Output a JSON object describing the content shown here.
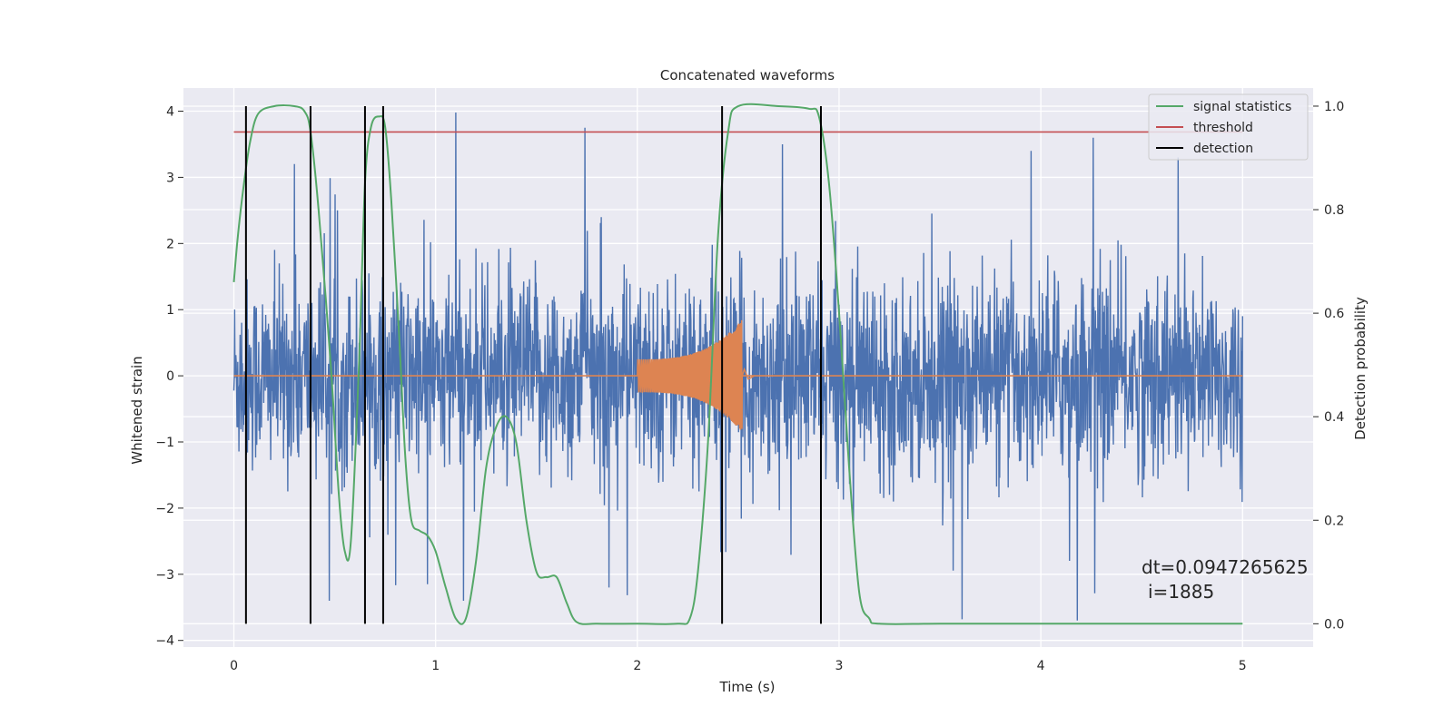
{
  "chart_data": {
    "type": "line",
    "title": "Concatenated waveforms",
    "xlabel": "Time (s)",
    "ylabel": "Whitened strain",
    "y2label": "Detection probability",
    "xlim": [
      -0.25,
      5.35
    ],
    "ylim": [
      -4.1,
      4.35
    ],
    "y2lim": [
      -0.045,
      1.035
    ],
    "xticks": [
      "0",
      "1",
      "2",
      "3",
      "4",
      "5"
    ],
    "yticks": [
      "−4",
      "−3",
      "−2",
      "−1",
      "0",
      "1",
      "2",
      "3",
      "4"
    ],
    "y2ticks": [
      "0.0",
      "0.2",
      "0.4",
      "0.6",
      "0.8",
      "1.0"
    ],
    "grid": true,
    "legend_position": "top-right",
    "legend": [
      "signal statistics",
      "threshold",
      "detection"
    ],
    "colors": {
      "strain": "#4c72b0",
      "injection": "#dd8452",
      "signal_statistics": "#55a868",
      "threshold": "#c44e52",
      "detection": "#000000",
      "axes_background": "#eaeaf2",
      "grid": "#ffffff"
    },
    "series": [
      {
        "name": "strain",
        "axis": "left",
        "x_range": [
          0,
          5
        ],
        "description": "whitened noise, roughly ±1 with spikes up to ±4",
        "peaks": [
          {
            "x": 1.1,
            "y": 3.98
          },
          {
            "x": 0.3,
            "y": 3.2
          },
          {
            "x": 1.74,
            "y": 3.75
          },
          {
            "x": 2.72,
            "y": 3.5
          },
          {
            "x": 3.61,
            "y": -3.68
          },
          {
            "x": 4.18,
            "y": -3.7
          },
          {
            "x": 4.26,
            "y": 3.6
          },
          {
            "x": 4.68,
            "y": 3.3
          },
          {
            "x": 0.96,
            "y": -3.15
          },
          {
            "x": 1.86,
            "y": -3.2
          }
        ]
      },
      {
        "name": "injection",
        "axis": "left",
        "x_range": [
          2.0,
          2.52
        ],
        "amplitude_start": 0.25,
        "amplitude_peak": 0.85,
        "peak_x": 2.52
      },
      {
        "name": "signal statistics",
        "axis": "right",
        "x": [
          0.0,
          0.02,
          0.05,
          0.08,
          0.12,
          0.2,
          0.3,
          0.35,
          0.38,
          0.42,
          0.48,
          0.52,
          0.55,
          0.58,
          0.62,
          0.65,
          0.68,
          0.72,
          0.75,
          0.78,
          0.82,
          0.85,
          0.88,
          0.92,
          0.96,
          1.0,
          1.05,
          1.1,
          1.15,
          1.2,
          1.25,
          1.3,
          1.35,
          1.4,
          1.45,
          1.5,
          1.55,
          1.6,
          1.65,
          1.7,
          1.8,
          2.0,
          2.2,
          2.26,
          2.3,
          2.35,
          2.4,
          2.45,
          2.5,
          2.7,
          2.85,
          2.9,
          2.95,
          3.0,
          3.05,
          3.1,
          3.15,
          3.2,
          3.5,
          4.0,
          5.0
        ],
        "y": [
          0.66,
          0.75,
          0.85,
          0.93,
          0.985,
          1.0,
          1.0,
          0.99,
          0.95,
          0.8,
          0.5,
          0.25,
          0.14,
          0.16,
          0.5,
          0.85,
          0.96,
          0.98,
          0.96,
          0.82,
          0.55,
          0.32,
          0.2,
          0.18,
          0.17,
          0.14,
          0.07,
          0.01,
          0.01,
          0.12,
          0.3,
          0.38,
          0.4,
          0.35,
          0.2,
          0.1,
          0.09,
          0.09,
          0.04,
          0.003,
          0.0,
          0.0,
          0.0,
          0.01,
          0.1,
          0.35,
          0.75,
          0.95,
          1.0,
          1.0,
          0.995,
          0.98,
          0.85,
          0.6,
          0.3,
          0.06,
          0.01,
          0.0,
          0.0,
          0.0,
          0.0
        ]
      },
      {
        "name": "threshold",
        "axis": "right",
        "x": [
          0,
          5
        ],
        "y": [
          0.95,
          0.95
        ]
      }
    ],
    "detections": [
      0.06,
      0.38,
      0.65,
      0.74,
      2.42,
      2.91
    ],
    "annotation": {
      "line1": "dt=0.0947265625",
      "line2": "i=1885"
    }
  }
}
